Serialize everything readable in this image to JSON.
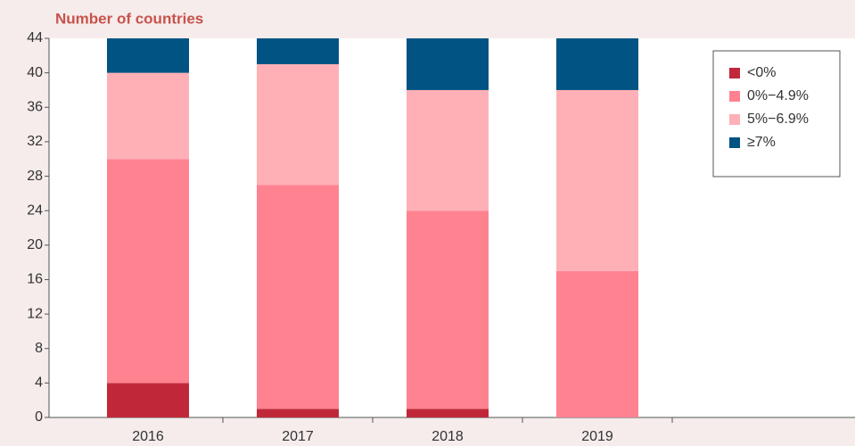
{
  "chart_data": {
    "type": "stacked_bar",
    "ylabel": "Number of countries",
    "categories": [
      "2016",
      "2017",
      "2018",
      "2019"
    ],
    "series": [
      {
        "name": "<0%",
        "color": "#c0283a",
        "values": [
          4,
          1,
          1,
          0
        ]
      },
      {
        "name": "0%−4.9%",
        "color": "#ff8291",
        "values": [
          26,
          26,
          23,
          17
        ]
      },
      {
        "name": "5%−6.9%",
        "color": "#ffb0b6",
        "values": [
          10,
          14,
          14,
          21
        ]
      },
      {
        "name": "≥7%",
        "color": "#005382",
        "values": [
          4,
          3,
          6,
          6
        ]
      }
    ],
    "ylim": [
      0,
      44
    ],
    "yticks": [
      0,
      4,
      8,
      12,
      16,
      20,
      24,
      28,
      32,
      36,
      40,
      44
    ],
    "legend": "upper right"
  }
}
